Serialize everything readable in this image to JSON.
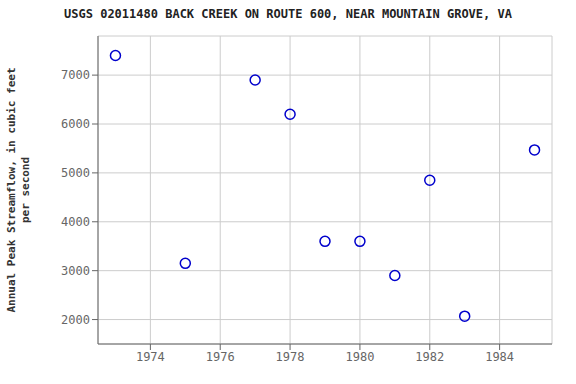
{
  "chart_data": {
    "type": "scatter",
    "title": "USGS 02011480 BACK CREEK ON ROUTE 600, NEAR MOUNTAIN GROVE, VA",
    "ylabel": "Annual Peak Streamflow, in cubic feet\nper second",
    "x": [
      1973,
      1975,
      1977,
      1978,
      1979,
      1980,
      1981,
      1982,
      1983,
      1985
    ],
    "values": [
      7400,
      3150,
      6900,
      6200,
      3600,
      3600,
      2900,
      4850,
      2070,
      5470
    ],
    "color": "#0000cc",
    "marker": "circle",
    "grid": true,
    "xlim": [
      1972.5,
      1985.5
    ],
    "ylim": [
      1500,
      7800
    ],
    "xticks": [
      1974,
      1976,
      1978,
      1980,
      1982,
      1984
    ],
    "yticks": [
      2000,
      3000,
      4000,
      5000,
      6000,
      7000
    ]
  }
}
